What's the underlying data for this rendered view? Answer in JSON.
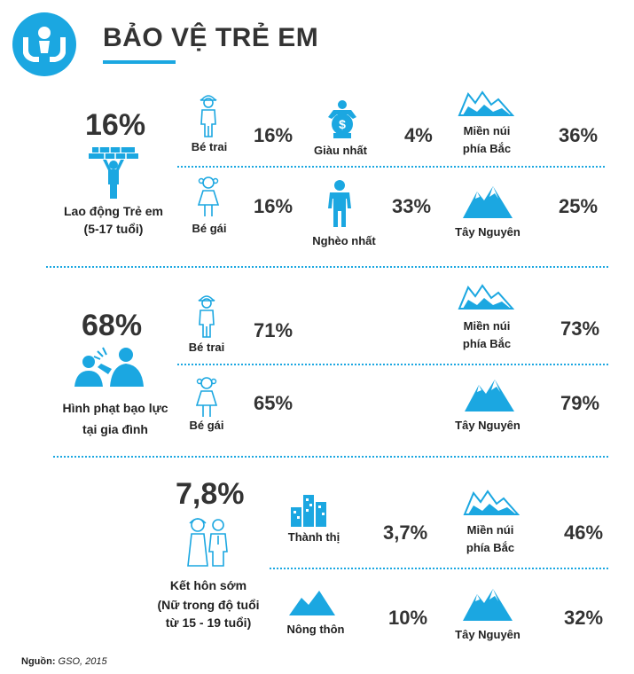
{
  "header": {
    "title": "BẢO VỆ TRẺ EM",
    "logo_icon": "hands-protecting-child-icon"
  },
  "accent_color": "#1ba7e1",
  "section_labor": {
    "headline": "16%",
    "caption_line1": "Lao động Trẻ em",
    "caption_line2": "(5-17 tuổi)",
    "boy": {
      "label": "Bé trai",
      "value": "16%"
    },
    "girl": {
      "label": "Bé gái",
      "value": "16%"
    },
    "richest": {
      "label": "Giàu nhất",
      "value": "4%"
    },
    "poorest": {
      "label": "Nghèo nhất",
      "value": "33%"
    },
    "north": {
      "label_line1": "Miền núi",
      "label_line2": "phía Bắc",
      "value": "36%"
    },
    "highlands": {
      "label": "Tây Nguyên",
      "value": "25%"
    }
  },
  "section_violence": {
    "headline": "68%",
    "caption_line1": "Hình phạt bạo lực",
    "caption_line2": "tại gia đình",
    "boy": {
      "label": "Bé trai",
      "value": "71%"
    },
    "girl": {
      "label": "Bé gái",
      "value": "65%"
    },
    "north": {
      "label_line1": "Miền núi",
      "label_line2": "phía Bắc",
      "value": "73%"
    },
    "highlands": {
      "label": "Tây Nguyên",
      "value": "79%"
    }
  },
  "section_marriage": {
    "headline": "7,8%",
    "caption_line1": "Kết hôn sớm",
    "caption_line2": "(Nữ trong độ tuổi",
    "caption_line3": "từ 15 - 19 tuổi)",
    "urban": {
      "label": "Thành thị",
      "value": "3,7%"
    },
    "rural": {
      "label": "Nông thôn",
      "value": "10%"
    },
    "north": {
      "label_line1": "Miền núi",
      "label_line2": "phía Bắc",
      "value": "46%"
    },
    "highlands": {
      "label": "Tây Nguyên",
      "value": "32%"
    }
  },
  "footer": {
    "source_label": "Nguồn:",
    "source_value": "GSO, 2015"
  }
}
